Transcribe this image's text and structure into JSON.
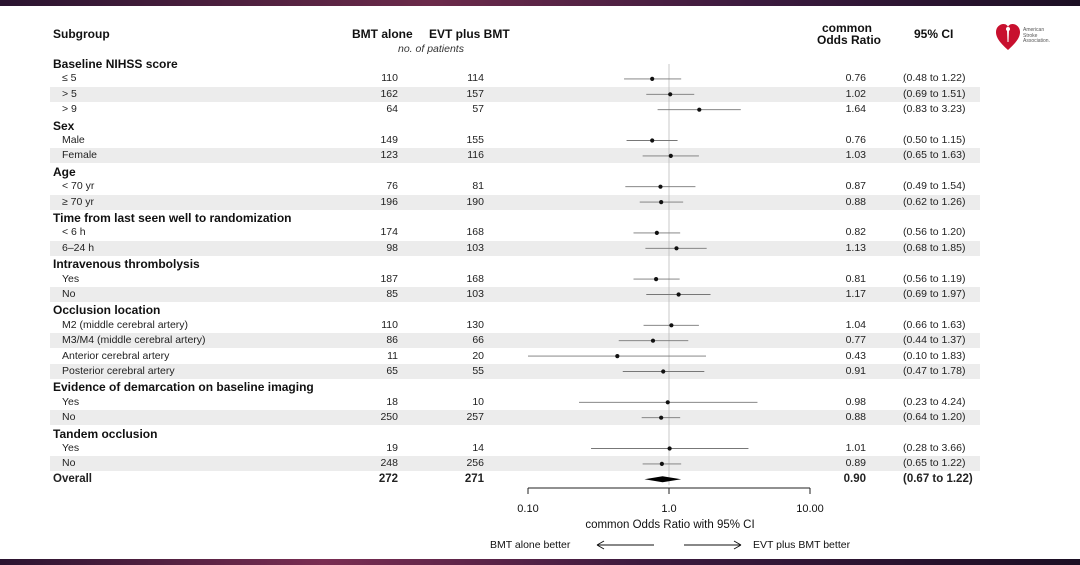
{
  "headers": {
    "subgroup": "Subgroup",
    "bmt_alone": "BMT alone",
    "evt_bmt": "EVT plus BMT",
    "patients": "no. of patients",
    "or_line1": "common",
    "or_line2": "Odds Ratio",
    "ci": "95% CI"
  },
  "logo": {
    "line1": "American",
    "line2": "Stroke",
    "line3": "Association."
  },
  "groups": [
    {
      "title": "Baseline NIHSS score",
      "rows": [
        {
          "label": "≤ 5",
          "bmt": "110",
          "evt": "114",
          "or": "0.76",
          "ci": "(0.48 to 1.22)"
        },
        {
          "label": "> 5",
          "bmt": "162",
          "evt": "157",
          "or": "1.02",
          "ci": "(0.69 to 1.51)"
        },
        {
          "label": "> 9",
          "bmt": "64",
          "evt": "57",
          "or": "1.64",
          "ci": "(0.83 to 3.23)"
        }
      ]
    },
    {
      "title": "Sex",
      "rows": [
        {
          "label": "Male",
          "bmt": "149",
          "evt": "155",
          "or": "0.76",
          "ci": "(0.50 to 1.15)"
        },
        {
          "label": "Female",
          "bmt": "123",
          "evt": "116",
          "or": "1.03",
          "ci": "(0.65 to 1.63)"
        }
      ]
    },
    {
      "title": "Age",
      "rows": [
        {
          "label": "< 70 yr",
          "bmt": "76",
          "evt": "81",
          "or": "0.87",
          "ci": "(0.49 to 1.54)"
        },
        {
          "label": "≥ 70 yr",
          "bmt": "196",
          "evt": "190",
          "or": "0.88",
          "ci": "(0.62 to 1.26)"
        }
      ]
    },
    {
      "title": "Time from last seen well to randomization",
      "rows": [
        {
          "label": "< 6 h",
          "bmt": "174",
          "evt": "168",
          "or": "0.82",
          "ci": "(0.56 to 1.20)"
        },
        {
          "label": "6–24 h",
          "bmt": "98",
          "evt": "103",
          "or": "1.13",
          "ci": "(0.68 to 1.85)"
        }
      ]
    },
    {
      "title": "Intravenous thrombolysis",
      "rows": [
        {
          "label": "Yes",
          "bmt": "187",
          "evt": "168",
          "or": "0.81",
          "ci": "(0.56 to 1.19)"
        },
        {
          "label": "No",
          "bmt": "85",
          "evt": "103",
          "or": "1.17",
          "ci": "(0.69 to 1.97)"
        }
      ]
    },
    {
      "title": "Occlusion location",
      "rows": [
        {
          "label": "M2 (middle cerebral artery)",
          "bmt": "110",
          "evt": "130",
          "or": "1.04",
          "ci": "(0.66 to 1.63)"
        },
        {
          "label": "M3/M4 (middle cerebral artery)",
          "bmt": "86",
          "evt": "66",
          "or": "0.77",
          "ci": "(0.44 to 1.37)"
        },
        {
          "label": "Anterior cerebral artery",
          "bmt": "11",
          "evt": "20",
          "or": "0.43",
          "ci": "(0.10 to 1.83)"
        },
        {
          "label": "Posterior cerebral artery",
          "bmt": "65",
          "evt": "55",
          "or": "0.91",
          "ci": "(0.47 to 1.78)"
        }
      ]
    },
    {
      "title": "Evidence of demarcation on baseline imaging",
      "rows": [
        {
          "label": "Yes",
          "bmt": "18",
          "evt": "10",
          "or": "0.98",
          "ci": "(0.23 to 4.24)"
        },
        {
          "label": "No",
          "bmt": "250",
          "evt": "257",
          "or": "0.88",
          "ci": "(0.64 to 1.20)"
        }
      ]
    },
    {
      "title": "Tandem occlusion",
      "rows": [
        {
          "label": "Yes",
          "bmt": "19",
          "evt": "14",
          "or": "1.01",
          "ci": "(0.28 to 3.66)"
        },
        {
          "label": "No",
          "bmt": "248",
          "evt": "256",
          "or": "0.89",
          "ci": "(0.65 to 1.22)"
        }
      ]
    }
  ],
  "overall": {
    "label": "Overall",
    "bmt": "272",
    "evt": "271",
    "or": "0.90",
    "ci": "(0.67 to 1.22)"
  },
  "chart_data": {
    "type": "forest",
    "x_scale": "log",
    "xlim": [
      0.1,
      10
    ],
    "xticks": [
      "0.10",
      "1.0",
      "10.00"
    ],
    "xtick_values": [
      0.1,
      1,
      10
    ],
    "xlabel": "common Odds Ratio with 95% CI",
    "reference_line": 1,
    "left_annotation": "BMT alone better",
    "right_annotation": "EVT plus BMT better",
    "estimates": [
      {
        "or": 0.76,
        "lo": 0.48,
        "hi": 1.22
      },
      {
        "or": 1.02,
        "lo": 0.69,
        "hi": 1.51
      },
      {
        "or": 1.64,
        "lo": 0.83,
        "hi": 3.23
      },
      {
        "or": 0.76,
        "lo": 0.5,
        "hi": 1.15
      },
      {
        "or": 1.03,
        "lo": 0.65,
        "hi": 1.63
      },
      {
        "or": 0.87,
        "lo": 0.49,
        "hi": 1.54
      },
      {
        "or": 0.88,
        "lo": 0.62,
        "hi": 1.26
      },
      {
        "or": 0.82,
        "lo": 0.56,
        "hi": 1.2
      },
      {
        "or": 1.13,
        "lo": 0.68,
        "hi": 1.85
      },
      {
        "or": 0.81,
        "lo": 0.56,
        "hi": 1.19
      },
      {
        "or": 1.17,
        "lo": 0.69,
        "hi": 1.97
      },
      {
        "or": 1.04,
        "lo": 0.66,
        "hi": 1.63
      },
      {
        "or": 0.77,
        "lo": 0.44,
        "hi": 1.37
      },
      {
        "or": 0.43,
        "lo": 0.1,
        "hi": 1.83
      },
      {
        "or": 0.91,
        "lo": 0.47,
        "hi": 1.78
      },
      {
        "or": 0.98,
        "lo": 0.23,
        "hi": 4.24
      },
      {
        "or": 0.88,
        "lo": 0.64,
        "hi": 1.2
      },
      {
        "or": 1.01,
        "lo": 0.28,
        "hi": 3.66
      },
      {
        "or": 0.89,
        "lo": 0.65,
        "hi": 1.22
      }
    ],
    "overall_estimate": {
      "or": 0.9,
      "lo": 0.67,
      "hi": 1.22
    }
  }
}
